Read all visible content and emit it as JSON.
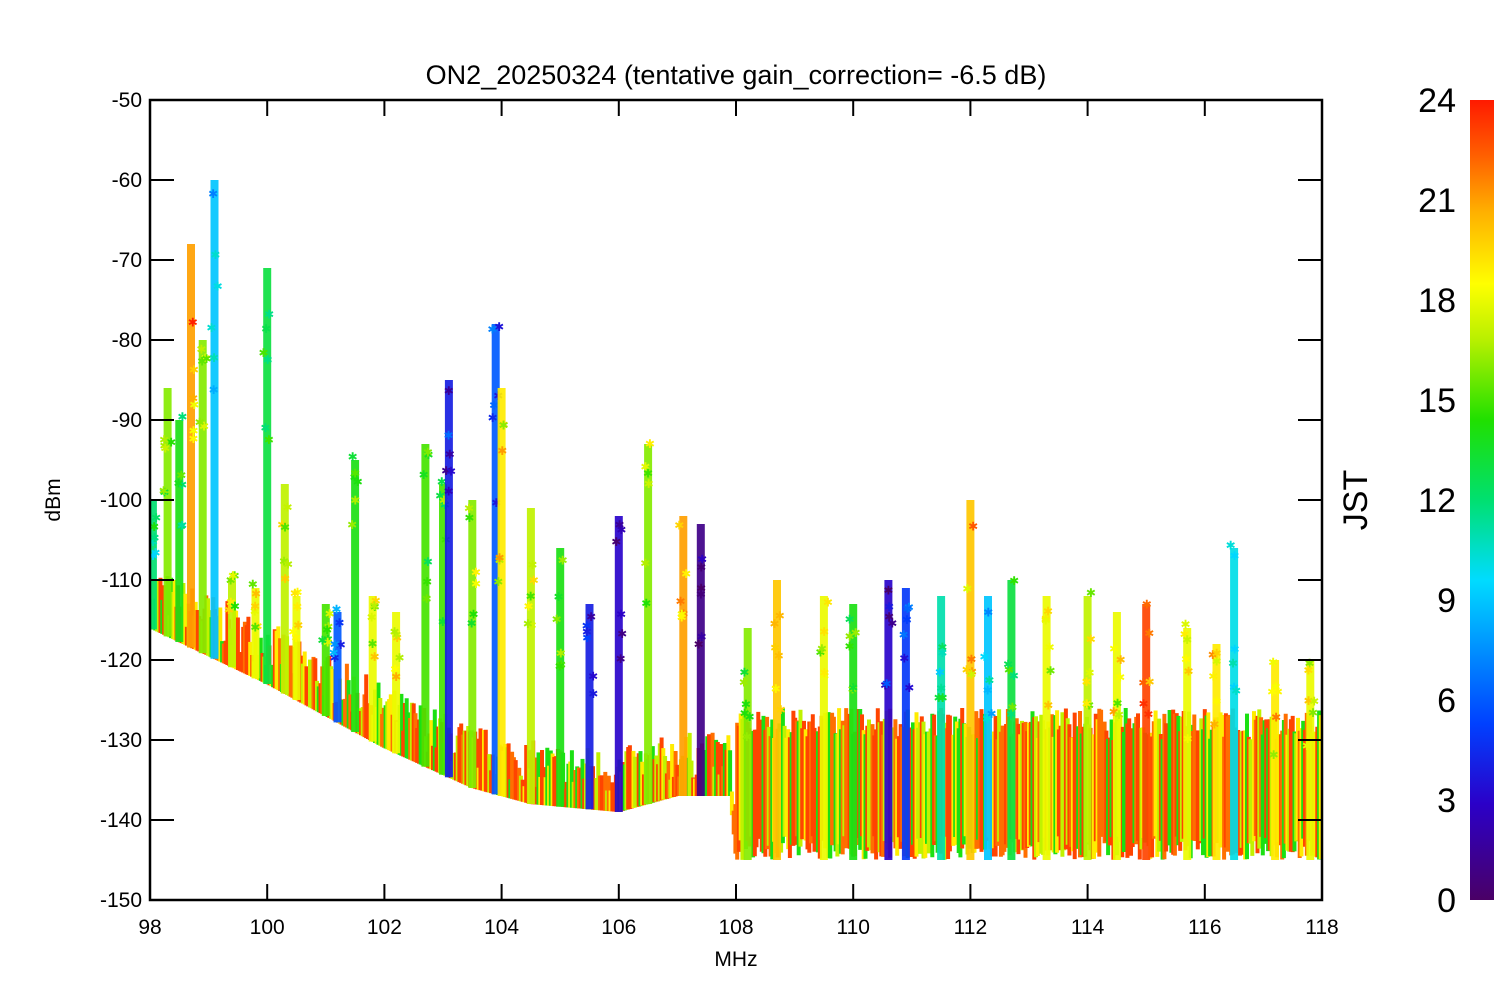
{
  "chart_data": {
    "type": "scatter",
    "title": "ON2_20250324 (tentative gain_correction= -6.5 dB)",
    "xlabel": "MHz",
    "ylabel": "dBm",
    "xlim": [
      98,
      118
    ],
    "ylim": [
      -150,
      -50
    ],
    "x_ticks": [
      "98",
      "100",
      "102",
      "104",
      "106",
      "108",
      "110",
      "112",
      "114",
      "116",
      "118"
    ],
    "y_ticks": [
      "-50",
      "-60",
      "-70",
      "-80",
      "-90",
      "-100",
      "-110",
      "-120",
      "-130",
      "-140",
      "-150"
    ],
    "colorbar": {
      "label": "JST",
      "range": [
        0,
        24
      ],
      "ticks": [
        "0",
        "3",
        "6",
        "9",
        "12",
        "15",
        "18",
        "21",
        "24"
      ],
      "colormap": "rainbow"
    },
    "noise_floor": [
      {
        "x": 98.0,
        "y": -116
      },
      {
        "x": 100.0,
        "y": -123
      },
      {
        "x": 102.0,
        "y": -131
      },
      {
        "x": 103.5,
        "y": -136
      },
      {
        "x": 104.5,
        "y": -138
      },
      {
        "x": 106.0,
        "y": -139
      },
      {
        "x": 107.0,
        "y": -137
      },
      {
        "x": 107.9,
        "y": -137
      },
      {
        "x": 108.0,
        "y": -145
      },
      {
        "x": 118.0,
        "y": -145
      }
    ],
    "peaks": [
      {
        "x": 98.05,
        "y": -100,
        "jst": 12
      },
      {
        "x": 98.3,
        "y": -86,
        "jst": 16
      },
      {
        "x": 98.5,
        "y": -90,
        "jst": 14
      },
      {
        "x": 98.7,
        "y": -68,
        "jst": 21
      },
      {
        "x": 98.9,
        "y": -80,
        "jst": 16
      },
      {
        "x": 99.1,
        "y": -60,
        "jst": 9
      },
      {
        "x": 99.4,
        "y": -110,
        "jst": 17
      },
      {
        "x": 99.8,
        "y": -111,
        "jst": 18
      },
      {
        "x": 100.0,
        "y": -71,
        "jst": 13
      },
      {
        "x": 100.3,
        "y": -98,
        "jst": 17
      },
      {
        "x": 100.5,
        "y": -112,
        "jst": 18
      },
      {
        "x": 101.0,
        "y": -113,
        "jst": 15
      },
      {
        "x": 101.2,
        "y": -114,
        "jst": 6
      },
      {
        "x": 101.5,
        "y": -95,
        "jst": 14
      },
      {
        "x": 101.8,
        "y": -112,
        "jst": 18
      },
      {
        "x": 102.2,
        "y": -114,
        "jst": 18
      },
      {
        "x": 102.7,
        "y": -93,
        "jst": 15
      },
      {
        "x": 103.0,
        "y": -98,
        "jst": 15
      },
      {
        "x": 103.1,
        "y": -85,
        "jst": 4
      },
      {
        "x": 103.5,
        "y": -100,
        "jst": 16
      },
      {
        "x": 103.9,
        "y": -78,
        "jst": 6
      },
      {
        "x": 104.0,
        "y": -86,
        "jst": 19
      },
      {
        "x": 104.5,
        "y": -101,
        "jst": 17
      },
      {
        "x": 105.0,
        "y": -106,
        "jst": 14
      },
      {
        "x": 105.5,
        "y": -113,
        "jst": 4
      },
      {
        "x": 106.0,
        "y": -102,
        "jst": 3
      },
      {
        "x": 106.5,
        "y": -93,
        "jst": 16
      },
      {
        "x": 107.1,
        "y": -102,
        "jst": 21
      },
      {
        "x": 107.4,
        "y": -103,
        "jst": 1
      },
      {
        "x": 108.2,
        "y": -116,
        "jst": 16
      },
      {
        "x": 108.7,
        "y": -110,
        "jst": 20
      },
      {
        "x": 109.5,
        "y": -112,
        "jst": 18
      },
      {
        "x": 110.0,
        "y": -113,
        "jst": 14
      },
      {
        "x": 110.6,
        "y": -110,
        "jst": 3
      },
      {
        "x": 110.9,
        "y": -111,
        "jst": 5
      },
      {
        "x": 111.5,
        "y": -112,
        "jst": 11
      },
      {
        "x": 112.0,
        "y": -100,
        "jst": 20
      },
      {
        "x": 112.3,
        "y": -112,
        "jst": 9
      },
      {
        "x": 112.7,
        "y": -110,
        "jst": 13
      },
      {
        "x": 113.3,
        "y": -112,
        "jst": 18
      },
      {
        "x": 114.0,
        "y": -112,
        "jst": 17
      },
      {
        "x": 114.5,
        "y": -114,
        "jst": 18
      },
      {
        "x": 115.0,
        "y": -113,
        "jst": 23
      },
      {
        "x": 115.7,
        "y": -116,
        "jst": 18
      },
      {
        "x": 116.2,
        "y": -118,
        "jst": 19
      },
      {
        "x": 116.5,
        "y": -106,
        "jst": 10
      },
      {
        "x": 117.2,
        "y": -120,
        "jst": 19
      },
      {
        "x": 117.8,
        "y": -120,
        "jst": 18
      }
    ]
  }
}
